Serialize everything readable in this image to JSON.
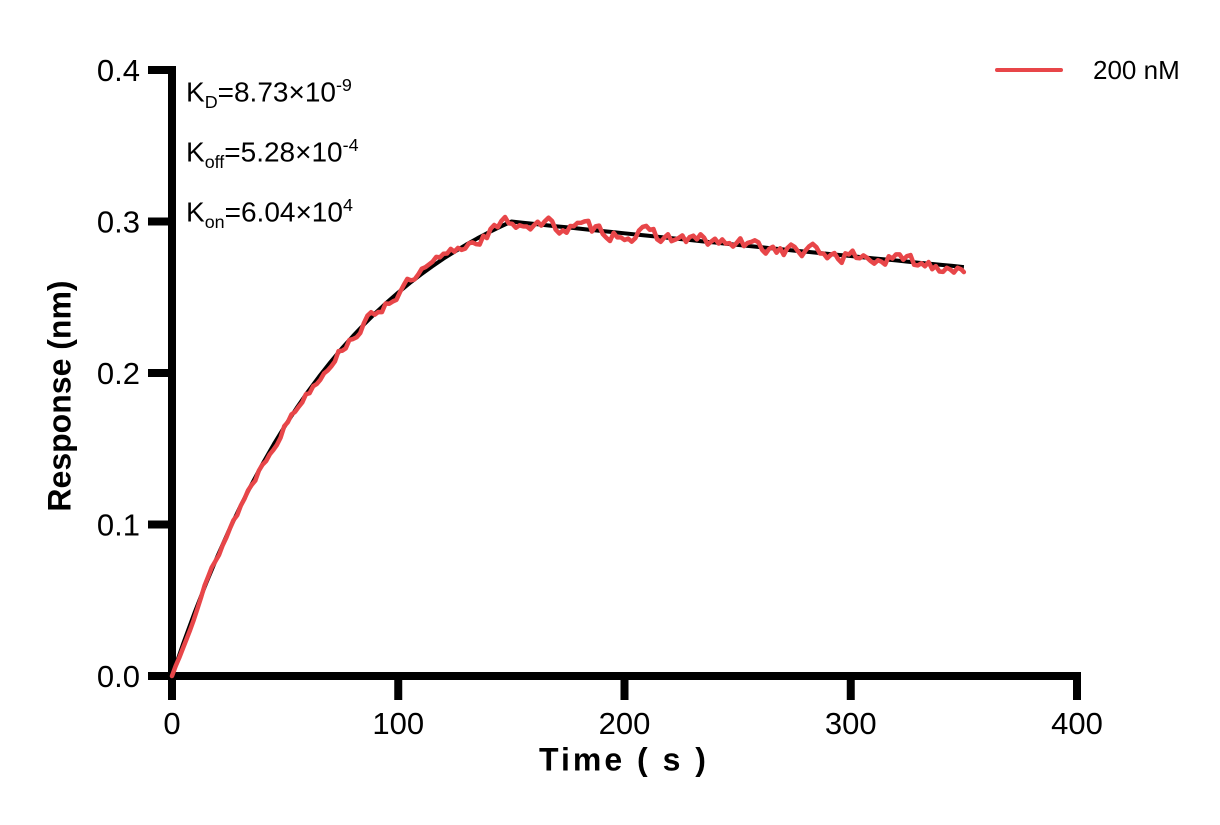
{
  "figure": {
    "y_axis_title": "Response (nm)",
    "x_axis_title": "Time ( s )",
    "annotations": [
      {
        "base": "K",
        "sub": "D",
        "eq": "=8.73×10",
        "sup": "-9"
      },
      {
        "base": "K",
        "sub": "off",
        "eq": "=5.28×10",
        "sup": "-4"
      },
      {
        "base": "K",
        "sub": "on",
        "eq": "=6.04×10",
        "sup": "4"
      }
    ],
    "legend": {
      "label": "200 nM",
      "color": "#E84649"
    }
  },
  "chart_data": {
    "type": "line",
    "title": "",
    "xlabel": "Time ( s )",
    "ylabel": "Response (nm)",
    "xlim": [
      0,
      400
    ],
    "ylim": [
      0,
      0.4
    ],
    "xticks": [
      0,
      100,
      200,
      300,
      400
    ],
    "xtick_labels": [
      "0",
      "100",
      "200",
      "300",
      "400"
    ],
    "yticks": [
      0,
      0.1,
      0.2,
      0.3,
      0.4
    ],
    "ytick_labels": [
      "0.0",
      "0.1",
      "0.2",
      "0.3",
      "0.4"
    ],
    "grid": false,
    "legend_position": "top-right",
    "kinetics": {
      "KD": "8.73e-9",
      "koff": "5.28e-4",
      "kon": "6.04e4",
      "concentration": "200 nM"
    },
    "series": [
      {
        "name": "200 nM fit",
        "role": "fit",
        "color": "#000000",
        "width": 4,
        "x": [
          0,
          5,
          10,
          15,
          20,
          25,
          30,
          35,
          40,
          45,
          50,
          55,
          60,
          65,
          70,
          75,
          80,
          85,
          90,
          95,
          100,
          105,
          110,
          115,
          120,
          125,
          130,
          135,
          140,
          145,
          150,
          155,
          160,
          165,
          170,
          175,
          180,
          185,
          190,
          195,
          200,
          205,
          210,
          215,
          220,
          225,
          230,
          235,
          240,
          245,
          250,
          255,
          260,
          265,
          270,
          275,
          280,
          285,
          290,
          295,
          300,
          305,
          310,
          315,
          320,
          325,
          330,
          335,
          340,
          345,
          350
        ],
        "y": [
          0,
          0.0216,
          0.0419,
          0.0609,
          0.0787,
          0.0955,
          0.1113,
          0.126,
          0.1399,
          0.153,
          0.1652,
          0.1767,
          0.1875,
          0.1976,
          0.2071,
          0.2161,
          0.2244,
          0.2323,
          0.2397,
          0.2466,
          0.2531,
          0.2593,
          0.265,
          0.2704,
          0.2755,
          0.2802,
          0.2847,
          0.2889,
          0.2928,
          0.2965,
          0.3,
          0.2992,
          0.2984,
          0.2976,
          0.2968,
          0.2961,
          0.2953,
          0.2945,
          0.2937,
          0.293,
          0.2922,
          0.2914,
          0.2907,
          0.2899,
          0.2891,
          0.2884,
          0.2876,
          0.2868,
          0.2861,
          0.2853,
          0.2846,
          0.2838,
          0.2831,
          0.2823,
          0.2816,
          0.2808,
          0.2801,
          0.2794,
          0.2786,
          0.2779,
          0.2772,
          0.2764,
          0.2757,
          0.275,
          0.2743,
          0.2735,
          0.2728,
          0.2721,
          0.2714,
          0.2707,
          0.2699
        ]
      },
      {
        "name": "200 nM",
        "role": "data",
        "color": "#E84649",
        "width": 4.5,
        "derived_from": "fit",
        "sample_step": 1.6,
        "t_end": 350,
        "noise": {
          "seed": 13,
          "smooth": 0.5,
          "amp_assoc_min": 0.0018,
          "amp_assoc_max": 0.004,
          "amp_dissoc": 0.0042
        }
      }
    ]
  }
}
